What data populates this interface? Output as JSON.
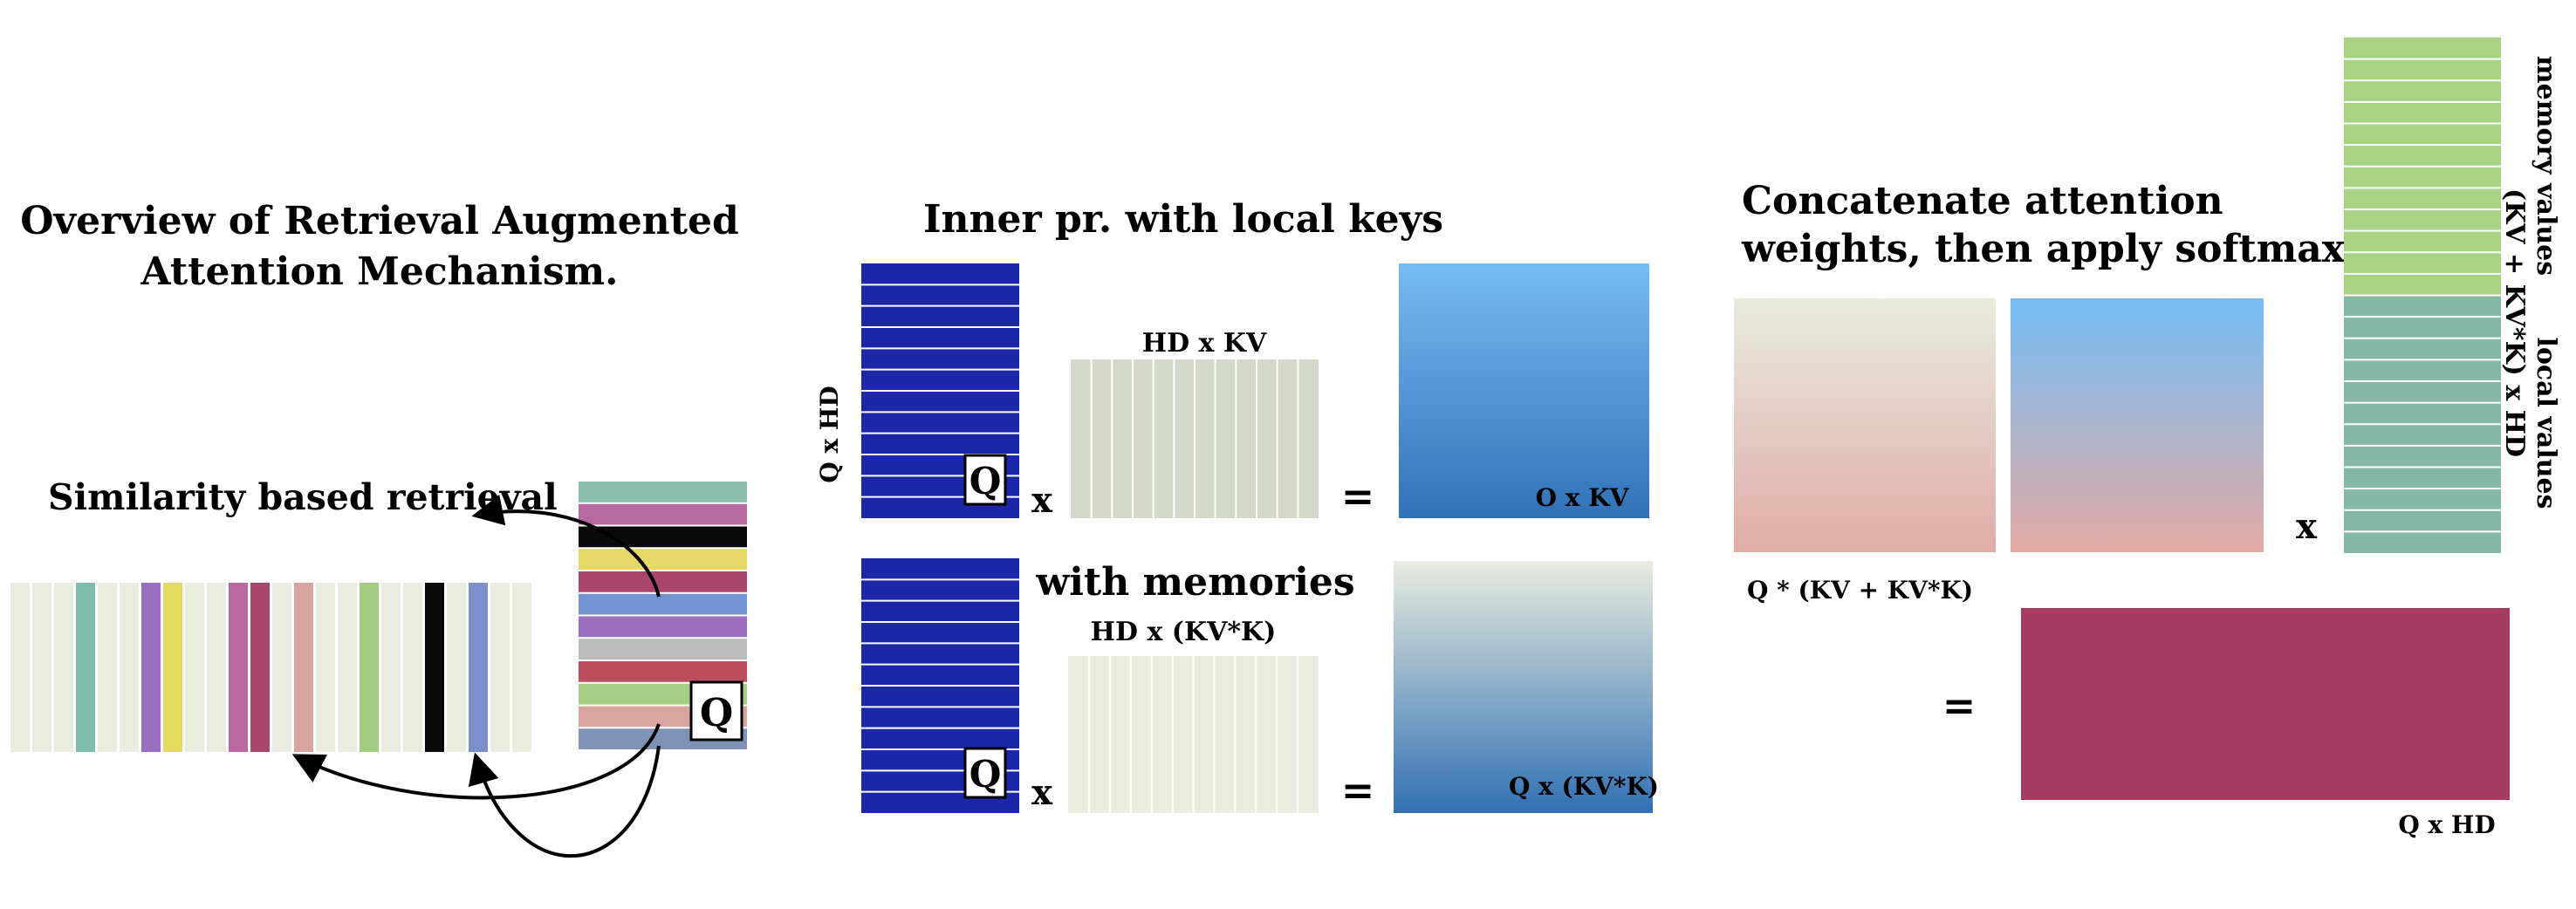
{
  "title": {
    "line1": "Overview of Retrieval Augmented",
    "line2": "Attention Mechanism."
  },
  "retrieval": {
    "label": "Similarity based retrieval",
    "query_tag": "Q",
    "memory_strip_colors": [
      "#e9ecdf",
      "#e9ecdf",
      "#e9ecdf",
      "#7fbcad",
      "#e9ecdf",
      "#e9ecdf",
      "#9b6fbf",
      "#e4d95f",
      "#e9ecdf",
      "#e9ecdf",
      "#b86aa0",
      "#a8466c",
      "#e9ecdf",
      "#d8a49f",
      "#e9ecdf",
      "#e9ecdf",
      "#a3cd83",
      "#e9ecdf",
      "#e9ecdf",
      "#0a0a0a",
      "#e9ecdf",
      "#7b8fca",
      "#e9ecdf",
      "#e9ecdf"
    ],
    "retrieved_row_colors": [
      "#8abdab",
      "#b76aa1",
      "#0a0a0a",
      "#e5d866",
      "#a8466c",
      "#7594d6",
      "#9c6fc0",
      "#bcbcbc",
      "#b94e5d",
      "#a4ce83",
      "#d8a5a0",
      "#7f93b6"
    ]
  },
  "local_keys": {
    "heading": "Inner pr. with local keys",
    "query_label": "Q x HD",
    "query_tag": "Q",
    "keys_label": "HD x KV",
    "result_label": "O x KV",
    "times": "x",
    "equals": "="
  },
  "memories": {
    "heading": "with memories",
    "query_tag": "Q",
    "keys_label": "HD x (KV*K)",
    "result_label": "Q x (KV*K)",
    "times": "x",
    "equals": "="
  },
  "softmax": {
    "heading_line1": "Concatenate attention",
    "heading_line2": "weights, then apply softmax",
    "weights_label": "Q * (KV + KV*K)",
    "times": "x",
    "equals": "="
  },
  "values": {
    "memory_label": "memory values",
    "local_label": "local values",
    "dims_label": "(KV + KV*K)  x HD",
    "memory_color": "#a9d384",
    "local_color": "#86b8a8"
  },
  "output": {
    "label": "Q x HD",
    "color": "#a63b61"
  },
  "colors": {
    "query_blue": "#1b27a6",
    "keys_gray": "#d4d8ca",
    "keys_light": "#e9ecdf",
    "local_result_top": "#74bcf5",
    "local_result_bottom": "#3172b7",
    "mem_result_top": "#e9ecdf",
    "mem_result_bottom": "#3170b4",
    "concat_left_top": "#e9ebdf",
    "concat_left_bottom": "#dfaca6",
    "concat_right_top": "#74bcf5",
    "concat_right_bottom": "#e2aaa4"
  }
}
